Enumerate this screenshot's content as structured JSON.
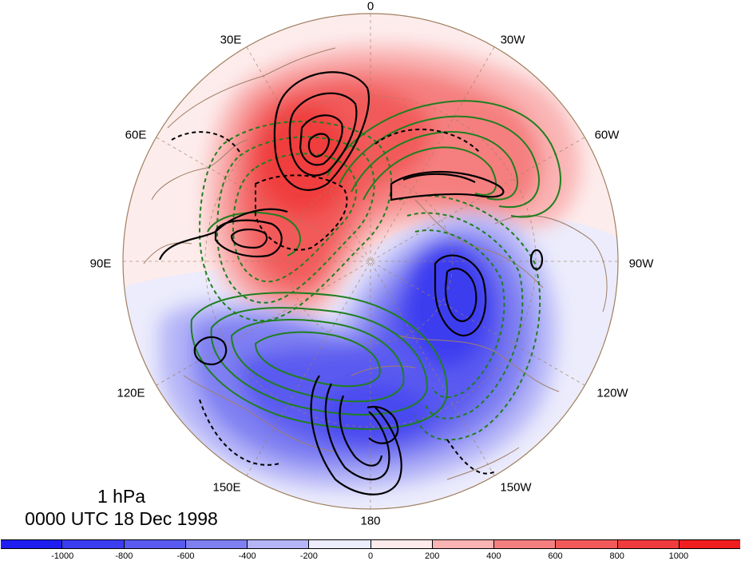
{
  "title": {
    "level": "1 hPa",
    "time": "0000 UTC 18 Dec 1998"
  },
  "longitude_labels": [
    {
      "id": "lon-0",
      "text": "0"
    },
    {
      "id": "lon-30w",
      "text": "30W"
    },
    {
      "id": "lon-60w",
      "text": "60W"
    },
    {
      "id": "lon-90w",
      "text": "90W"
    },
    {
      "id": "lon-120w",
      "text": "120W"
    },
    {
      "id": "lon-150w",
      "text": "150W"
    },
    {
      "id": "lon-180",
      "text": "180"
    },
    {
      "id": "lon-150e",
      "text": "150E"
    },
    {
      "id": "lon-120e",
      "text": "120E"
    },
    {
      "id": "lon-90e",
      "text": "90E"
    },
    {
      "id": "lon-60e",
      "text": "60E"
    },
    {
      "id": "lon-30e",
      "text": "30E"
    }
  ],
  "colorbar": {
    "colors": [
      "#1e1ef0",
      "#3c3cf0",
      "#5a5af0",
      "#7f7ff2",
      "#b5b5f8",
      "#ececfc",
      "#fdeaea",
      "#fab4b4",
      "#f57f7f",
      "#f25a5a",
      "#f03c3c",
      "#f01e1e"
    ],
    "labels": [
      "-1000",
      "-800",
      "-600",
      "-400",
      "-200",
      "0",
      "200",
      "400",
      "600",
      "800",
      "1000"
    ]
  },
  "contour_colors": {
    "black": "#000000",
    "green": "#1f7f1f",
    "coast": "#a0806a",
    "grid": "#a08060"
  }
}
